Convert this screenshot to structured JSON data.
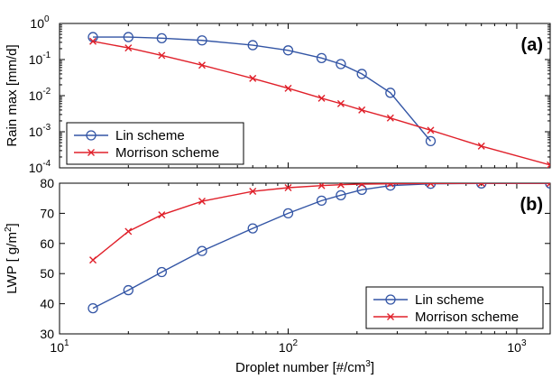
{
  "colors": {
    "lin": "#3355a5",
    "morrison": "#e0202a",
    "axis": "#000000"
  },
  "x_label": "Droplet number [#/cm",
  "x_label_sup": "3",
  "x_label_end": "]",
  "x_tick_base": "10",
  "chart_data": [
    {
      "type": "line",
      "panel_label": "(a)",
      "ylabel": "Rain max [mm/d]",
      "yscale": "log",
      "xscale": "log",
      "xlim": [
        10,
        1400
      ],
      "ylim": [
        0.0001,
        1
      ],
      "y_tick_base": "10",
      "y_ticks": [
        {
          "value": 0.0001,
          "exp": "-4"
        },
        {
          "value": 0.001,
          "exp": "-3"
        },
        {
          "value": 0.01,
          "exp": "-2"
        },
        {
          "value": 0.1,
          "exp": "-1"
        },
        {
          "value": 1,
          "exp": "0"
        }
      ],
      "legend_position": "bottom-left",
      "series": [
        {
          "name": "Lin scheme",
          "marker": "circle",
          "x": [
            14,
            20,
            28,
            42,
            70,
            100,
            140,
            170,
            210,
            280,
            420
          ],
          "y": [
            0.42,
            0.42,
            0.39,
            0.34,
            0.25,
            0.18,
            0.11,
            0.075,
            0.04,
            0.012,
            0.00055
          ]
        },
        {
          "name": "Morrison scheme",
          "marker": "x",
          "x": [
            14,
            20,
            28,
            42,
            70,
            100,
            140,
            170,
            210,
            280,
            420,
            700,
            1400
          ],
          "y": [
            0.32,
            0.21,
            0.13,
            0.07,
            0.03,
            0.016,
            0.0085,
            0.006,
            0.004,
            0.0024,
            0.0011,
            0.0004,
            0.00012
          ]
        }
      ]
    },
    {
      "type": "line",
      "panel_label": "(b)",
      "ylabel": "LWP [ g/m",
      "ylabel_sup": "2",
      "ylabel_end": "]",
      "yscale": "linear",
      "xscale": "log",
      "xlim": [
        10,
        1400
      ],
      "ylim": [
        30,
        80
      ],
      "y_ticks": [
        {
          "value": 30,
          "label": "30"
        },
        {
          "value": 40,
          "label": "40"
        },
        {
          "value": 50,
          "label": "50"
        },
        {
          "value": 60,
          "label": "60"
        },
        {
          "value": 70,
          "label": "70"
        },
        {
          "value": 80,
          "label": "80"
        }
      ],
      "x_ticks": [
        {
          "value": 10,
          "exp": "1"
        },
        {
          "value": 100,
          "exp": "2"
        },
        {
          "value": 1000,
          "exp": "3"
        }
      ],
      "legend_position": "bottom-right",
      "series": [
        {
          "name": "Lin scheme",
          "marker": "circle",
          "x": [
            14,
            20,
            28,
            42,
            70,
            100,
            140,
            170,
            210,
            280,
            420,
            700,
            1400
          ],
          "y": [
            38.5,
            44.5,
            50.5,
            57.5,
            65,
            70,
            74.2,
            76,
            77.8,
            79.2,
            79.8,
            79.9,
            79.9
          ]
        },
        {
          "name": "Morrison scheme",
          "marker": "x",
          "x": [
            14,
            20,
            28,
            42,
            70,
            100,
            140,
            170,
            210,
            280,
            420,
            700,
            1400
          ],
          "y": [
            54.5,
            64,
            69.5,
            74,
            77.3,
            78.5,
            79.2,
            79.5,
            79.7,
            79.8,
            79.9,
            80,
            80
          ]
        }
      ]
    }
  ]
}
